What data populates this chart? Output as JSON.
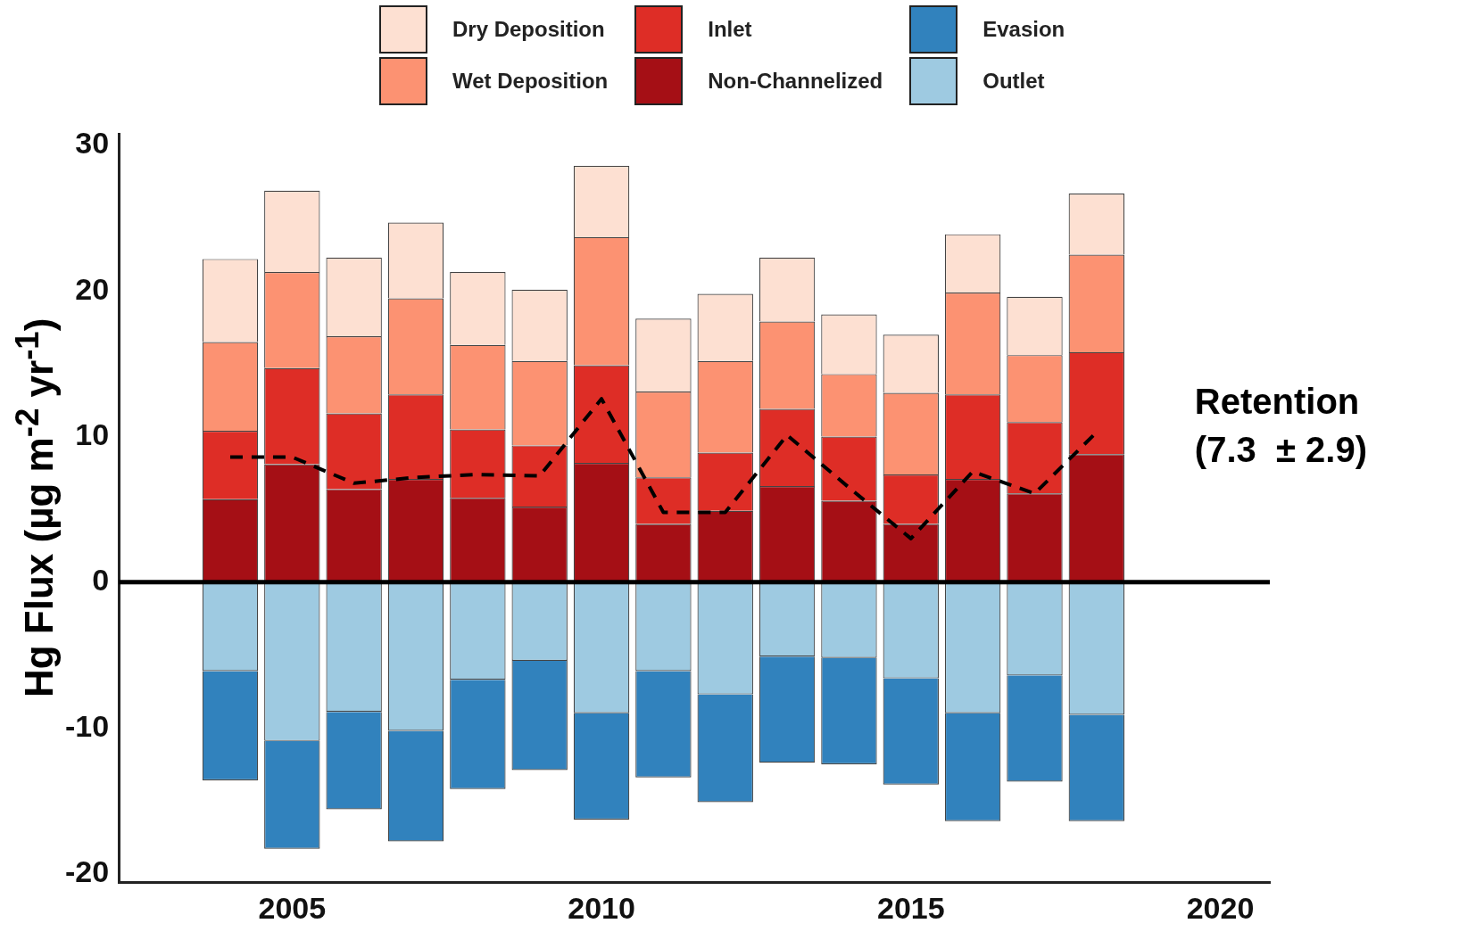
{
  "chart_data": {
    "type": "bar",
    "stacked": true,
    "ylabel": "Hg Flux (µg m$^{-2}$ yr$^{-1}$)",
    "x": [
      2004,
      2005,
      2006,
      2007,
      2008,
      2009,
      2010,
      2011,
      2012,
      2013,
      2014,
      2015,
      2016,
      2017,
      2018
    ],
    "xlim": [
      2002.2,
      2020.8
    ],
    "xticks": [
      2005,
      2010,
      2015,
      2020
    ],
    "ylim": [
      -20.6,
      30.8
    ],
    "yticks": [
      -20,
      -10,
      0,
      10,
      20,
      30
    ],
    "grid": false,
    "legend": "top",
    "series": [
      {
        "name": "Outlet",
        "color": "#9ecae1",
        "values": [
          -6.1,
          -10.9,
          -8.9,
          -10.2,
          -6.7,
          -5.4,
          -9.0,
          -6.1,
          -7.7,
          -5.1,
          -5.2,
          -6.6,
          -9.0,
          -6.4,
          -9.1
        ]
      },
      {
        "name": "Evasion",
        "color": "#3182bd",
        "values": [
          -7.5,
          -7.4,
          -6.7,
          -7.6,
          -7.5,
          -7.5,
          -7.3,
          -7.3,
          -7.4,
          -7.3,
          -7.3,
          -7.3,
          -7.4,
          -7.3,
          -7.3
        ]
      },
      {
        "name": "Non-Channelized",
        "color": "#a50f15",
        "values": [
          5.7,
          8.1,
          6.4,
          7.1,
          5.8,
          5.2,
          8.2,
          4.0,
          4.9,
          6.6,
          5.6,
          4.0,
          7.1,
          6.1,
          8.8
        ]
      },
      {
        "name": "Inlet",
        "color": "#de2d26",
        "values": [
          4.7,
          6.6,
          5.2,
          5.8,
          4.7,
          4.2,
          6.7,
          3.2,
          4.0,
          5.3,
          4.4,
          3.4,
          5.8,
          4.9,
          7.0
        ]
      },
      {
        "name": "Wet Deposition",
        "color": "#fc9272",
        "values": [
          6.1,
          6.6,
          5.3,
          6.6,
          5.8,
          5.8,
          8.8,
          5.9,
          6.3,
          6.0,
          4.3,
          5.6,
          7.0,
          4.6,
          6.7
        ]
      },
      {
        "name": "Dry Deposition",
        "color": "#fde0d2",
        "values": [
          5.7,
          5.6,
          5.4,
          5.2,
          5.0,
          4.9,
          4.9,
          5.0,
          4.6,
          4.4,
          4.1,
          4.0,
          4.0,
          4.0,
          4.2
        ]
      },
      {
        "name": "Retention",
        "type": "line",
        "color": "#000000",
        "line_style": "dashed",
        "marker": "none",
        "values": [
          8.6,
          8.6,
          6.8,
          7.2,
          7.4,
          7.3,
          12.6,
          4.8,
          4.8,
          10.1,
          6.5,
          3.0,
          7.6,
          6.1,
          10.3
        ]
      }
    ],
    "ref_lines": [
      {
        "axis": "y",
        "value": 0,
        "color": "#000000"
      }
    ],
    "annotations": [
      "(7.3  ± 2.9)"
    ]
  }
}
